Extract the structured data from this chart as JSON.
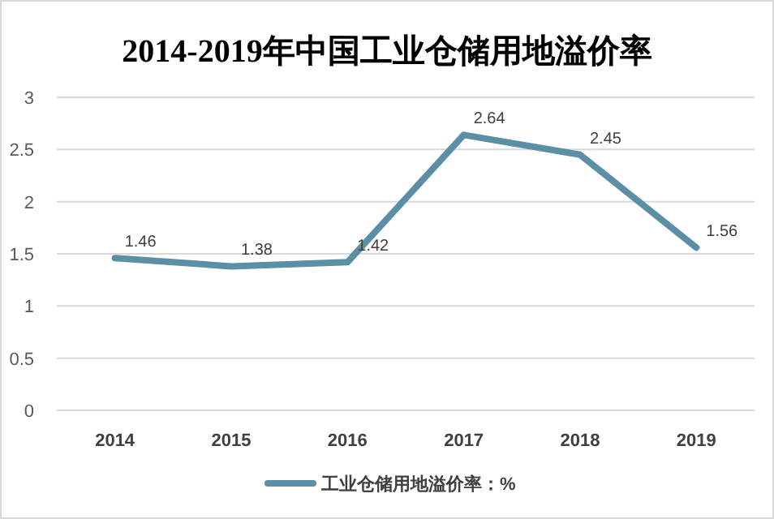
{
  "chart_data": {
    "type": "line",
    "title": "2014-2019年中国工业仓储用地溢价率",
    "categories": [
      "2014",
      "2015",
      "2016",
      "2017",
      "2018",
      "2019"
    ],
    "series": [
      {
        "name": "工业仓储用地溢价率：%",
        "color": "#5b8fa5",
        "values": [
          1.46,
          1.38,
          1.42,
          2.64,
          2.45,
          1.56
        ]
      }
    ],
    "ylim": [
      0,
      3
    ],
    "yticks": [
      0,
      0.5,
      1,
      1.5,
      2,
      2.5,
      3
    ],
    "grid": "y",
    "legend": "bottom",
    "data_labels": true,
    "marker": "none",
    "line_style": "solid"
  }
}
